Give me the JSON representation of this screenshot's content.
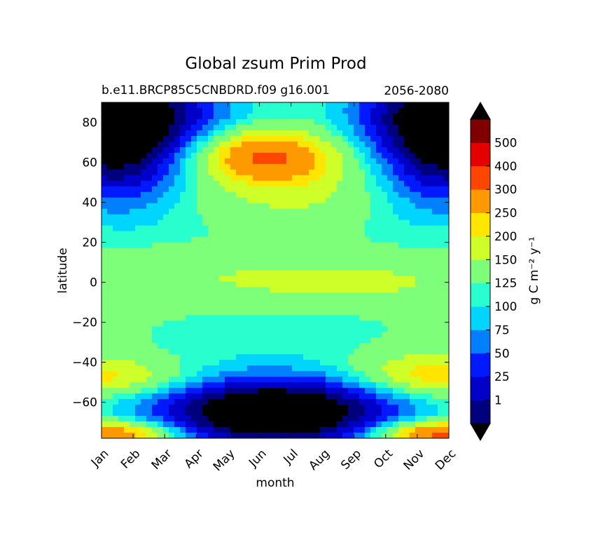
{
  "chart_data": {
    "type": "heatmap",
    "title": "Global zsum Prim Prod",
    "subtitle_left": "b.e11.BRCP85C5CNBDRD.f09 g16.001",
    "subtitle_right": "2056-2080",
    "xlabel": "month",
    "ylabel": "latitude",
    "x_categories": [
      "Jan",
      "Feb",
      "Mar",
      "Apr",
      "May",
      "Jun",
      "Jul",
      "Aug",
      "Sep",
      "Oct",
      "Nov",
      "Dec"
    ],
    "xlim": [
      1,
      12
    ],
    "ylim": [
      -78,
      90
    ],
    "y_ticks": [
      -60,
      -40,
      -20,
      0,
      20,
      40,
      60,
      80
    ],
    "levels": [
      1,
      25,
      50,
      75,
      100,
      125,
      150,
      200,
      250,
      300,
      400,
      500
    ],
    "level_colors": [
      "#00007f",
      "#0000c8",
      "#0019ff",
      "#0080ff",
      "#00d5ff",
      "#29ffce",
      "#7dff7a",
      "#ceff29",
      "#ffe500",
      "#ff9900",
      "#ff4600",
      "#e50000",
      "#7f0000"
    ],
    "colorbar_label": "g C m⁻² y⁻¹",
    "colorbar_extend": "both",
    "under_color": "#000000",
    "over_color": "#000000",
    "grid": false
  }
}
